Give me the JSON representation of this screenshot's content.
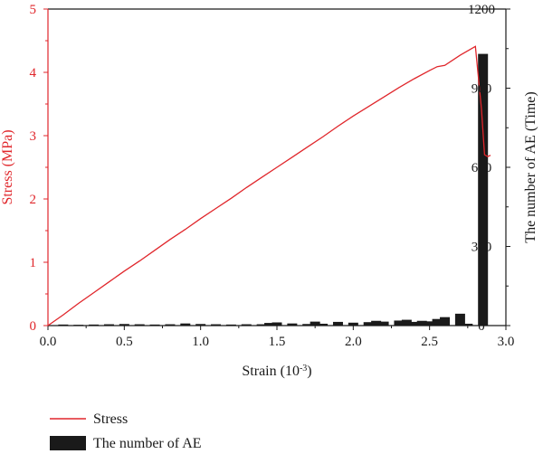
{
  "chart_data": {
    "type": "bar+line",
    "title": "",
    "x_axis": {
      "label": "Strain (10",
      "label_exponent": "-3",
      "label_suffix": ")",
      "range": [
        0,
        3.0
      ],
      "ticks": [
        "0.0",
        "0.5",
        "1.0",
        "1.5",
        "2.0",
        "2.5",
        "3.0"
      ],
      "tick_values": [
        0,
        0.5,
        1.0,
        1.5,
        2.0,
        2.5,
        3.0
      ]
    },
    "y_left": {
      "label": "Stress (MPa)",
      "range": [
        0,
        5
      ],
      "ticks": [
        "0",
        "1",
        "2",
        "3",
        "4",
        "5"
      ],
      "tick_values": [
        0,
        1,
        2,
        3,
        4,
        5
      ]
    },
    "y_right": {
      "label": "The number of AE (Time)",
      "range": [
        0,
        1200
      ],
      "ticks": [
        "0",
        "300",
        "600",
        "900",
        "1200"
      ],
      "tick_values": [
        0,
        300,
        600,
        900,
        1200
      ]
    },
    "series": [
      {
        "name": "Stress",
        "kind": "line",
        "axis": "left",
        "x": [
          0,
          0.1,
          0.2,
          0.3,
          0.4,
          0.5,
          0.6,
          0.7,
          0.8,
          0.9,
          1.0,
          1.1,
          1.2,
          1.3,
          1.4,
          1.5,
          1.6,
          1.7,
          1.8,
          1.9,
          2.0,
          2.1,
          2.2,
          2.3,
          2.4,
          2.5,
          2.55,
          2.6,
          2.7,
          2.8,
          2.84,
          2.86,
          2.88,
          2.9
        ],
        "y": [
          0,
          0.17,
          0.35,
          0.52,
          0.69,
          0.86,
          1.02,
          1.19,
          1.36,
          1.52,
          1.69,
          1.85,
          2.01,
          2.18,
          2.34,
          2.5,
          2.66,
          2.82,
          2.98,
          3.15,
          3.31,
          3.46,
          3.61,
          3.76,
          3.9,
          4.03,
          4.09,
          4.11,
          4.27,
          4.41,
          3.42,
          2.7,
          2.67,
          2.69
        ]
      },
      {
        "name": "The number of AE",
        "kind": "bar",
        "axis": "right",
        "x": [
          0.1,
          0.2,
          0.3,
          0.4,
          0.5,
          0.6,
          0.7,
          0.8,
          0.9,
          1.0,
          1.1,
          1.2,
          1.3,
          1.4,
          1.45,
          1.5,
          1.6,
          1.7,
          1.75,
          1.8,
          1.9,
          2.0,
          2.1,
          2.15,
          2.2,
          2.3,
          2.35,
          2.4,
          2.45,
          2.5,
          2.55,
          2.6,
          2.7,
          2.75,
          2.85
        ],
        "y": [
          4,
          3,
          4,
          5,
          6,
          5,
          4,
          5,
          8,
          6,
          5,
          4,
          5,
          5,
          10,
          12,
          8,
          6,
          15,
          7,
          14,
          11,
          13,
          18,
          15,
          19,
          22,
          14,
          18,
          16,
          25,
          32,
          45,
          7,
          1030
        ]
      }
    ],
    "legend": {
      "placement": "bottom-left",
      "entries": [
        "Stress",
        "The number of AE"
      ]
    },
    "colors": {
      "stress_line": "#e0262b",
      "ae_bar": "#1a1a1a",
      "left_axis": "#e0262b",
      "right_axis": "#1a1a1a"
    }
  }
}
